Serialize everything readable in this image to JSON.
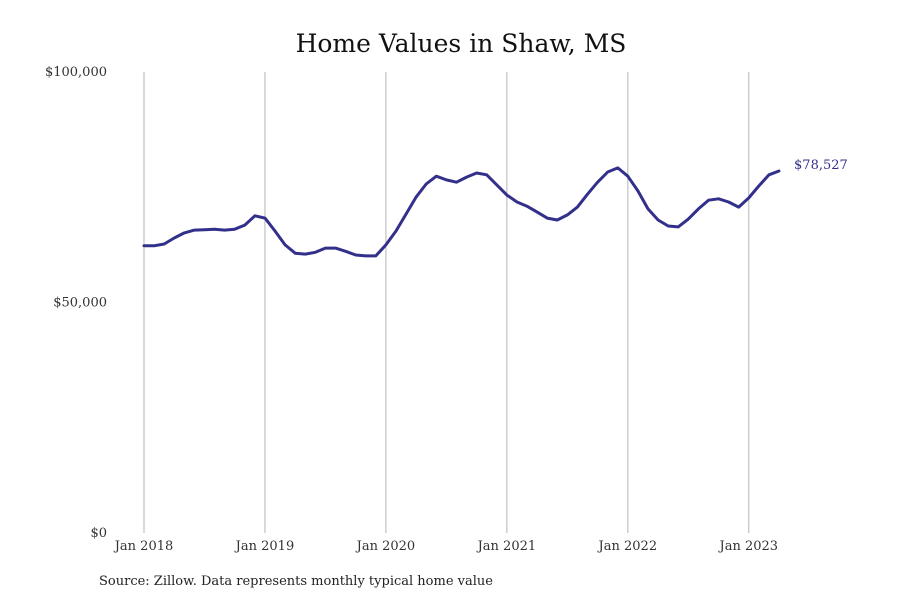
{
  "chart_data": {
    "type": "line",
    "title": "Home Values in Shaw, MS",
    "xlabel": "",
    "ylabel": "",
    "ylim": [
      0,
      100000
    ],
    "yticks": [
      {
        "value": 0,
        "label": "$0"
      },
      {
        "value": 50000,
        "label": "$50,000"
      },
      {
        "value": 100000,
        "label": "$100,000"
      }
    ],
    "xticks": [
      {
        "month_index": 0,
        "label": "Jan 2018"
      },
      {
        "month_index": 12,
        "label": "Jan 2019"
      },
      {
        "month_index": 24,
        "label": "Jan 2020"
      },
      {
        "month_index": 36,
        "label": "Jan 2021"
      },
      {
        "month_index": 48,
        "label": "Jan 2022"
      },
      {
        "month_index": 60,
        "label": "Jan 2023"
      }
    ],
    "grid": "vertical",
    "legend": "none",
    "color": "#32308a",
    "series": [
      {
        "name": "Typical home value",
        "start": "Jan 2018",
        "frequency": "monthly",
        "values": [
          62300,
          62300,
          62700,
          64000,
          65100,
          65700,
          65800,
          65900,
          65700,
          65900,
          66800,
          68800,
          68300,
          65500,
          62500,
          60700,
          60500,
          60900,
          61800,
          61800,
          61100,
          60300,
          60100,
          60100,
          62500,
          65500,
          69200,
          72900,
          75700,
          77400,
          76600,
          76100,
          77200,
          78100,
          77700,
          75500,
          73300,
          71800,
          70900,
          69600,
          68300,
          67900,
          69000,
          70700,
          73500,
          76100,
          78300,
          79200,
          77400,
          74200,
          70300,
          67900,
          66600,
          66400,
          68100,
          70300,
          72200,
          72500,
          71800,
          70700,
          72700,
          75300,
          77700,
          78527
        ]
      }
    ],
    "annotations": [
      {
        "text": "$78,527",
        "target": "last-point"
      }
    ],
    "source": "Source: Zillow. Data represents monthly typical home value"
  }
}
